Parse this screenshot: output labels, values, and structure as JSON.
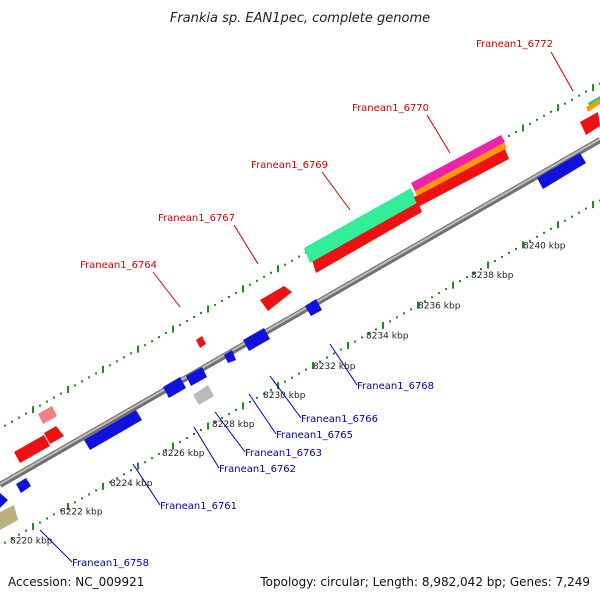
{
  "title": "Frankia sp. EAN1pec, complete genome",
  "footer": {
    "accession": "Accession: NC_009921",
    "summary": "Topology: circular; Length: 8,982,042 bp; Genes: 7,249"
  },
  "colors": {
    "backbone": "#999999",
    "forward_gene": "#ee1111",
    "reverse_gene": "#1111dd",
    "top_label": "#cc0000",
    "bottom_label": "#0000aa",
    "tick_dots": "#228822"
  },
  "ticks": [
    "8220 kbp",
    "8222 kbp",
    "8224 kbp",
    "8226 kbp",
    "8228 kbp",
    "8230 kbp",
    "8232 kbp",
    "8234 kbp",
    "8236 kbp",
    "8238 kbp",
    "8240 kbp"
  ],
  "top_labels": [
    "Franean1_6764",
    "Franean1_6767",
    "Franean1_6769",
    "Franean1_6770",
    "Franean1_6772"
  ],
  "bottom_labels": [
    "Franean1_6758",
    "Franean1_6761",
    "Franean1_6762",
    "Franean1_6763",
    "Franean1_6765",
    "Franean1_6766",
    "Franean1_6768"
  ]
}
